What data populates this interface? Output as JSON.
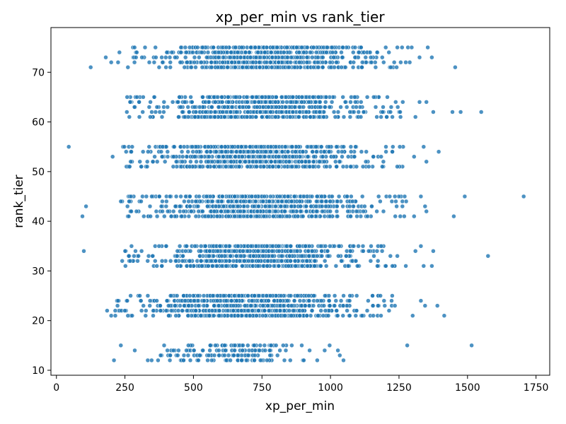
{
  "chart_data": {
    "type": "scatter",
    "title": "xp_per_min vs rank_tier",
    "xlabel": "xp_per_min",
    "ylabel": "rank_tier",
    "xlim": [
      -20,
      1800
    ],
    "ylim": [
      9,
      79
    ],
    "xticks": [
      0,
      250,
      500,
      750,
      1000,
      1250,
      1500,
      1750
    ],
    "yticks": [
      10,
      20,
      30,
      40,
      50,
      60,
      70
    ],
    "grid": false,
    "legend": "none",
    "point_color": "#1f77b4",
    "rank_tiers": [
      {
        "tier": 1,
        "levels": [
          12,
          13,
          14,
          15
        ],
        "x_core": [
          260,
          1060
        ]
      },
      {
        "tier": 2,
        "levels": [
          21,
          22,
          23,
          24,
          25
        ],
        "x_core": [
          210,
          1240
        ]
      },
      {
        "tier": 3,
        "levels": [
          31,
          32,
          33,
          34,
          35
        ],
        "x_core": [
          250,
          1250
        ]
      },
      {
        "tier": 4,
        "levels": [
          41,
          42,
          43,
          44,
          45
        ],
        "x_core": [
          240,
          1280
        ]
      },
      {
        "tier": 5,
        "levels": [
          51,
          52,
          53,
          54,
          55
        ],
        "x_core": [
          230,
          1270
        ]
      },
      {
        "tier": 6,
        "levels": [
          61,
          62,
          63,
          64,
          65
        ],
        "x_core": [
          255,
          1270
        ]
      },
      {
        "tier": 7,
        "levels": [
          71,
          72,
          73,
          74,
          75
        ],
        "x_core": [
          260,
          1300
        ]
      }
    ],
    "outliers": [
      {
        "x": 45,
        "y": 55
      },
      {
        "x": 95,
        "y": 41
      },
      {
        "x": 100,
        "y": 34
      },
      {
        "x": 108,
        "y": 43
      },
      {
        "x": 125,
        "y": 71
      },
      {
        "x": 180,
        "y": 73
      },
      {
        "x": 200,
        "y": 72
      },
      {
        "x": 205,
        "y": 53
      },
      {
        "x": 225,
        "y": 72
      },
      {
        "x": 230,
        "y": 74
      },
      {
        "x": 235,
        "y": 44
      },
      {
        "x": 240,
        "y": 32
      },
      {
        "x": 185,
        "y": 22
      },
      {
        "x": 200,
        "y": 21
      },
      {
        "x": 215,
        "y": 21
      },
      {
        "x": 225,
        "y": 24
      },
      {
        "x": 210,
        "y": 12
      },
      {
        "x": 235,
        "y": 15
      },
      {
        "x": 1280,
        "y": 15
      },
      {
        "x": 1515,
        "y": 15
      },
      {
        "x": 1300,
        "y": 21
      },
      {
        "x": 1330,
        "y": 24
      },
      {
        "x": 1345,
        "y": 23
      },
      {
        "x": 1390,
        "y": 23
      },
      {
        "x": 1415,
        "y": 21
      },
      {
        "x": 1275,
        "y": 31
      },
      {
        "x": 1310,
        "y": 34
      },
      {
        "x": 1330,
        "y": 35
      },
      {
        "x": 1340,
        "y": 31
      },
      {
        "x": 1370,
        "y": 31
      },
      {
        "x": 1375,
        "y": 34
      },
      {
        "x": 1575,
        "y": 33
      },
      {
        "x": 1305,
        "y": 41
      },
      {
        "x": 1330,
        "y": 45
      },
      {
        "x": 1345,
        "y": 43
      },
      {
        "x": 1350,
        "y": 42
      },
      {
        "x": 1450,
        "y": 41
      },
      {
        "x": 1490,
        "y": 45
      },
      {
        "x": 1705,
        "y": 45
      },
      {
        "x": 1305,
        "y": 53
      },
      {
        "x": 1340,
        "y": 55
      },
      {
        "x": 1350,
        "y": 52
      },
      {
        "x": 1395,
        "y": 54
      },
      {
        "x": 1310,
        "y": 61
      },
      {
        "x": 1325,
        "y": 64
      },
      {
        "x": 1350,
        "y": 64
      },
      {
        "x": 1375,
        "y": 62
      },
      {
        "x": 1445,
        "y": 62
      },
      {
        "x": 1475,
        "y": 62
      },
      {
        "x": 1550,
        "y": 62
      },
      {
        "x": 1325,
        "y": 73
      },
      {
        "x": 1355,
        "y": 75
      },
      {
        "x": 1370,
        "y": 73
      },
      {
        "x": 1455,
        "y": 71
      }
    ]
  }
}
